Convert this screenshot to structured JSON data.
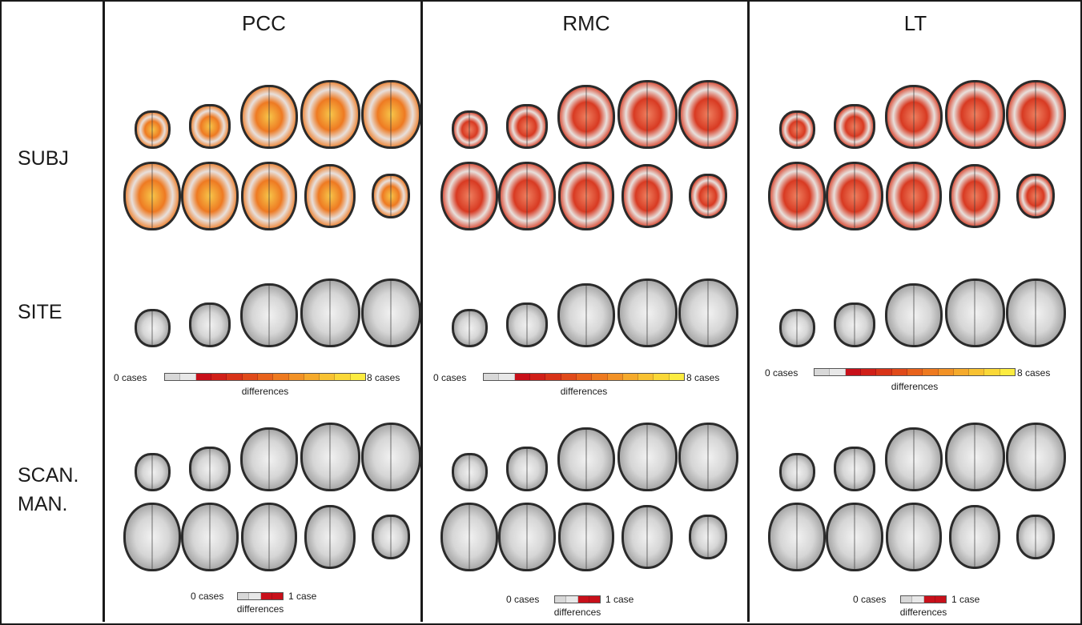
{
  "rows": [
    {
      "key": "subj",
      "label": "SUBJ"
    },
    {
      "key": "site",
      "label": "SITE"
    },
    {
      "key": "scan",
      "label_line1": "SCAN.",
      "label_line2": "MAN."
    }
  ],
  "columns": [
    {
      "title": "PCC"
    },
    {
      "title": "RMC"
    },
    {
      "title": "LT"
    }
  ],
  "legend_site": {
    "min_label": "0 cases",
    "max_label": "8 cases",
    "caption": "differences",
    "colors": [
      "#d8d8d8",
      "#e8e8e8",
      "#c8101a",
      "#d01f18",
      "#d83318",
      "#e04a1a",
      "#e8621c",
      "#ee7a20",
      "#f29226",
      "#f5aa2c",
      "#f8c232",
      "#fad838",
      "#fcec40"
    ]
  },
  "legend_scan": {
    "min_label": "0 cases",
    "max_label": "1 case",
    "caption": "differences",
    "colors": [
      "#d8d8d8",
      "#e8e8e8",
      "#c8101a",
      "#c8101a"
    ]
  },
  "colors": {
    "subj_pcc": "#f08a2a",
    "subj_other": "#e8402a",
    "activation_red": "#d4201a",
    "brain_gray": "#b8b8b8"
  }
}
